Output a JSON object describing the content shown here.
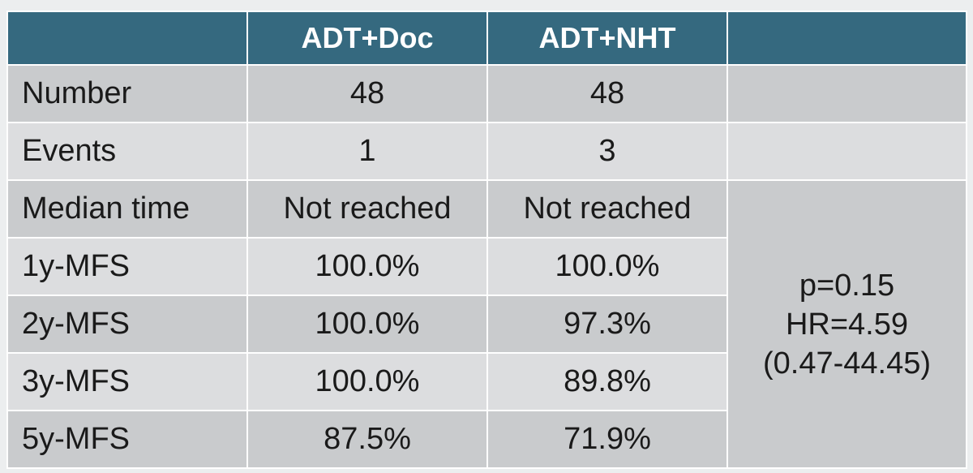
{
  "header": {
    "col0": "",
    "col1": "ADT+Doc",
    "col2": "ADT+NHT",
    "col3": ""
  },
  "rows": [
    {
      "label": "Number",
      "doc": "48",
      "nht": "48"
    },
    {
      "label": "Events",
      "doc": "1",
      "nht": "3"
    },
    {
      "label": "Median time",
      "doc": "Not reached",
      "nht": "Not reached"
    },
    {
      "label": "1y-MFS",
      "doc": "100.0%",
      "nht": "100.0%"
    },
    {
      "label": "2y-MFS",
      "doc": "100.0%",
      "nht": "97.3%"
    },
    {
      "label": "3y-MFS",
      "doc": "100.0%",
      "nht": "89.8%"
    },
    {
      "label": "5y-MFS",
      "doc": "87.5%",
      "nht": "71.9%"
    }
  ],
  "stats": {
    "p_value": "p=0.15",
    "hr": "HR=4.59",
    "ci": "(0.47-44.45)"
  },
  "colors": {
    "header_bg": "#35697f",
    "row_dark": "#c9cbcd",
    "row_light": "#dcdddf"
  }
}
